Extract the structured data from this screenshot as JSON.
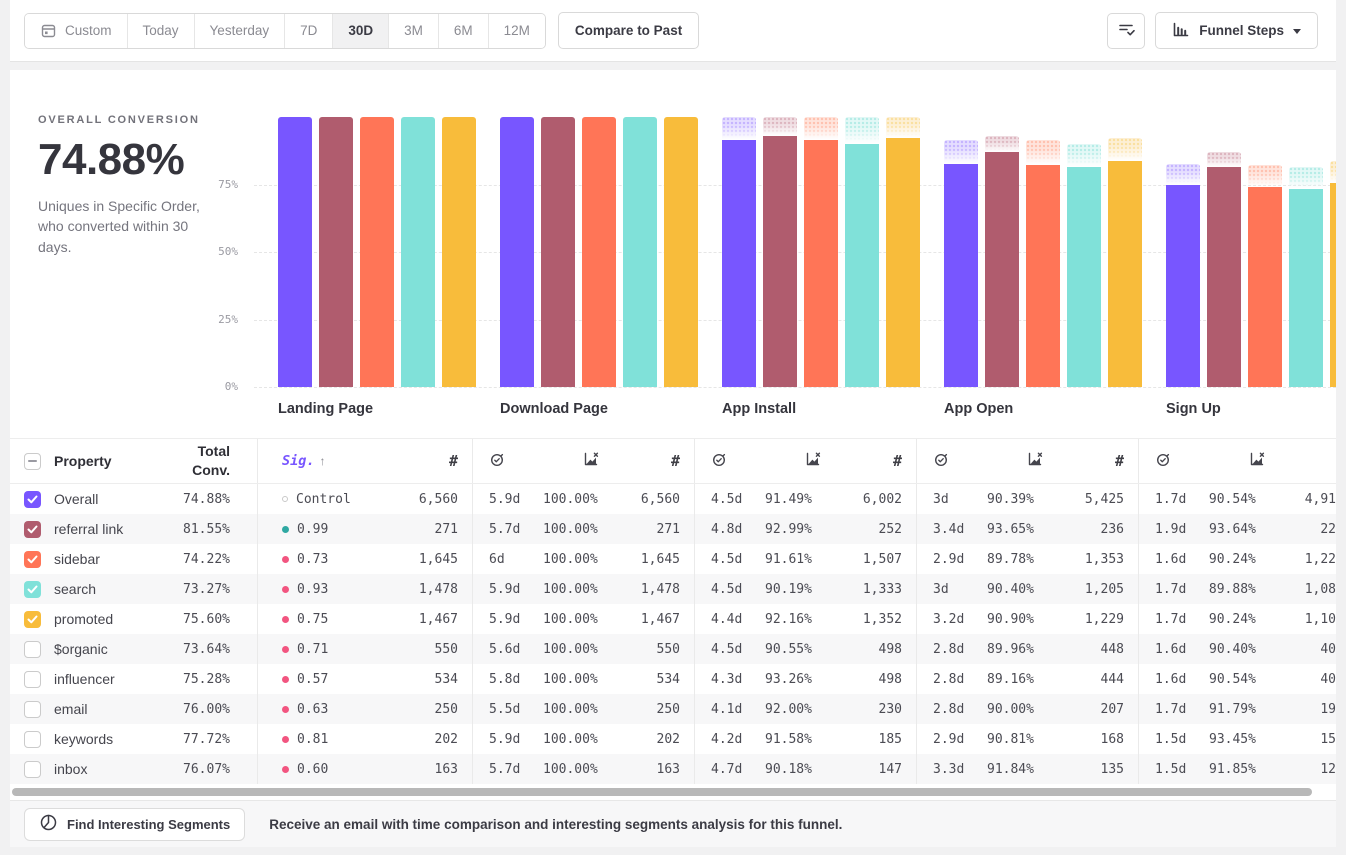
{
  "toolbar": {
    "date_ranges": [
      {
        "label": "Custom",
        "icon": "calendar-icon",
        "selected": false
      },
      {
        "label": "Today",
        "selected": false
      },
      {
        "label": "Yesterday",
        "selected": false
      },
      {
        "label": "7D",
        "selected": false
      },
      {
        "label": "30D",
        "selected": true
      },
      {
        "label": "3M",
        "selected": false
      },
      {
        "label": "6M",
        "selected": false
      },
      {
        "label": "12M",
        "selected": false
      }
    ],
    "compare_button": "Compare to Past",
    "filter_button_icon": "list-check-icon",
    "view_dropdown": {
      "icon": "bar-chart-icon",
      "label": "Funnel Steps"
    }
  },
  "summary": {
    "label": "OVERALL CONVERSION",
    "value": "74.88%",
    "description": "Uniques in Specific Order, who converted within 30 days."
  },
  "chart_data": {
    "type": "bar",
    "title": "",
    "categories": [
      "Landing Page",
      "Download Page",
      "App Install",
      "App Open",
      "Sign Up"
    ],
    "series": [
      {
        "name": "Overall",
        "color": "#7856FF",
        "tint": "#E5DEFF",
        "dot": "#C4B3FF",
        "values": [
          100,
          100,
          91.49,
          82.7,
          74.88
        ]
      },
      {
        "name": "referral link",
        "color": "#B05C6E",
        "tint": "#EFDDE2",
        "dot": "#DCB4BE",
        "values": [
          100,
          100,
          92.99,
          87.08,
          81.55
        ]
      },
      {
        "name": "sidebar",
        "color": "#FF7557",
        "tint": "#FFE4DC",
        "dot": "#FFC0AE",
        "values": [
          100,
          100,
          91.61,
          82.25,
          74.22
        ]
      },
      {
        "name": "search",
        "color": "#80E1D9",
        "tint": "#E3F8F6",
        "dot": "#B4ECE6",
        "values": [
          100,
          100,
          90.19,
          81.53,
          73.27
        ]
      },
      {
        "name": "promoted",
        "color": "#F8BC3B",
        "tint": "#FDEFD5",
        "dot": "#FADF9E",
        "values": [
          100,
          100,
          92.16,
          83.77,
          75.6
        ]
      }
    ],
    "overlay": "hatched light segment above each bar marks the previous step's level",
    "y_ticks": [
      {
        "label": "0%",
        "value": 0
      },
      {
        "label": "25%",
        "value": 25
      },
      {
        "label": "50%",
        "value": 50
      },
      {
        "label": "75%",
        "value": 75
      }
    ],
    "ylim": [
      0,
      100
    ],
    "grid": "dashed-horizontal"
  },
  "table": {
    "select_all_state": "indeterminate",
    "columns": {
      "property": "Property",
      "total_conv_lines": [
        "Total",
        "Conv."
      ],
      "sig": "Sig.",
      "sort_arrow": "↑",
      "count_icon": "hash-icon",
      "time_icon": "stopwatch-check-icon",
      "rate_icon": "conversion-rate-icon"
    },
    "step_groups": [
      "Landing Page",
      "Download Page",
      "App Install",
      "App Open",
      "Sign Up"
    ],
    "rows": [
      {
        "property": "Overall",
        "checked": true,
        "color": "#7856FF",
        "total_conv": "74.88%",
        "sig": "Control",
        "sig_dot": "control",
        "landing_count": "6,560",
        "steps": [
          {
            "time": "5.9d",
            "rate": "100.00%",
            "count": "6,560"
          },
          {
            "time": "4.5d",
            "rate": "91.49%",
            "count": "6,002"
          },
          {
            "time": "3d",
            "rate": "90.39%",
            "count": "5,425"
          },
          {
            "time": "1.7d",
            "rate": "90.54%",
            "count": "4,91"
          }
        ]
      },
      {
        "property": "referral link",
        "checked": true,
        "color": "#B05C6E",
        "total_conv": "81.55%",
        "sig": "0.99",
        "sig_dot": "teal",
        "landing_count": "271",
        "steps": [
          {
            "time": "5.7d",
            "rate": "100.00%",
            "count": "271"
          },
          {
            "time": "4.8d",
            "rate": "92.99%",
            "count": "252"
          },
          {
            "time": "3.4d",
            "rate": "93.65%",
            "count": "236"
          },
          {
            "time": "1.9d",
            "rate": "93.64%",
            "count": "22"
          }
        ]
      },
      {
        "property": "sidebar",
        "checked": true,
        "color": "#FF7557",
        "total_conv": "74.22%",
        "sig": "0.73",
        "sig_dot": "pink",
        "landing_count": "1,645",
        "steps": [
          {
            "time": "6d",
            "rate": "100.00%",
            "count": "1,645"
          },
          {
            "time": "4.5d",
            "rate": "91.61%",
            "count": "1,507"
          },
          {
            "time": "2.9d",
            "rate": "89.78%",
            "count": "1,353"
          },
          {
            "time": "1.6d",
            "rate": "90.24%",
            "count": "1,22"
          }
        ]
      },
      {
        "property": "search",
        "checked": true,
        "color": "#80E1D9",
        "total_conv": "73.27%",
        "sig": "0.93",
        "sig_dot": "pink",
        "landing_count": "1,478",
        "steps": [
          {
            "time": "5.9d",
            "rate": "100.00%",
            "count": "1,478"
          },
          {
            "time": "4.5d",
            "rate": "90.19%",
            "count": "1,333"
          },
          {
            "time": "3d",
            "rate": "90.40%",
            "count": "1,205"
          },
          {
            "time": "1.7d",
            "rate": "89.88%",
            "count": "1,08"
          }
        ]
      },
      {
        "property": "promoted",
        "checked": true,
        "color": "#F8BC3B",
        "total_conv": "75.60%",
        "sig": "0.75",
        "sig_dot": "pink",
        "landing_count": "1,467",
        "steps": [
          {
            "time": "5.9d",
            "rate": "100.00%",
            "count": "1,467"
          },
          {
            "time": "4.4d",
            "rate": "92.16%",
            "count": "1,352"
          },
          {
            "time": "3.2d",
            "rate": "90.90%",
            "count": "1,229"
          },
          {
            "time": "1.7d",
            "rate": "90.24%",
            "count": "1,10"
          }
        ]
      },
      {
        "property": "$organic",
        "checked": false,
        "color": "",
        "total_conv": "73.64%",
        "sig": "0.71",
        "sig_dot": "pink",
        "landing_count": "550",
        "steps": [
          {
            "time": "5.6d",
            "rate": "100.00%",
            "count": "550"
          },
          {
            "time": "4.5d",
            "rate": "90.55%",
            "count": "498"
          },
          {
            "time": "2.8d",
            "rate": "89.96%",
            "count": "448"
          },
          {
            "time": "1.6d",
            "rate": "90.40%",
            "count": "40"
          }
        ]
      },
      {
        "property": "influencer",
        "checked": false,
        "color": "",
        "total_conv": "75.28%",
        "sig": "0.57",
        "sig_dot": "pink",
        "landing_count": "534",
        "steps": [
          {
            "time": "5.8d",
            "rate": "100.00%",
            "count": "534"
          },
          {
            "time": "4.3d",
            "rate": "93.26%",
            "count": "498"
          },
          {
            "time": "2.8d",
            "rate": "89.16%",
            "count": "444"
          },
          {
            "time": "1.6d",
            "rate": "90.54%",
            "count": "40"
          }
        ]
      },
      {
        "property": "email",
        "checked": false,
        "color": "",
        "total_conv": "76.00%",
        "sig": "0.63",
        "sig_dot": "pink",
        "landing_count": "250",
        "steps": [
          {
            "time": "5.5d",
            "rate": "100.00%",
            "count": "250"
          },
          {
            "time": "4.1d",
            "rate": "92.00%",
            "count": "230"
          },
          {
            "time": "2.8d",
            "rate": "90.00%",
            "count": "207"
          },
          {
            "time": "1.7d",
            "rate": "91.79%",
            "count": "19"
          }
        ]
      },
      {
        "property": "keywords",
        "checked": false,
        "color": "",
        "total_conv": "77.72%",
        "sig": "0.81",
        "sig_dot": "pink",
        "landing_count": "202",
        "steps": [
          {
            "time": "5.9d",
            "rate": "100.00%",
            "count": "202"
          },
          {
            "time": "4.2d",
            "rate": "91.58%",
            "count": "185"
          },
          {
            "time": "2.9d",
            "rate": "90.81%",
            "count": "168"
          },
          {
            "time": "1.5d",
            "rate": "93.45%",
            "count": "15"
          }
        ]
      },
      {
        "property": "inbox",
        "checked": false,
        "color": "",
        "total_conv": "76.07%",
        "sig": "0.60",
        "sig_dot": "pink",
        "landing_count": "163",
        "steps": [
          {
            "time": "5.7d",
            "rate": "100.00%",
            "count": "163"
          },
          {
            "time": "4.7d",
            "rate": "90.18%",
            "count": "147"
          },
          {
            "time": "3.3d",
            "rate": "91.84%",
            "count": "135"
          },
          {
            "time": "1.5d",
            "rate": "91.85%",
            "count": "12"
          }
        ]
      }
    ]
  },
  "scrollbar": {
    "orientation": "horizontal"
  },
  "footer": {
    "button": "Find Interesting Segments",
    "icon": "segments-circle-icon",
    "message": "Receive an email with time comparison and interesting segments analysis for this funnel."
  },
  "colors": {
    "accent_purple": "#7856FF",
    "sig_dot_teal": "#2FA8A2",
    "sig_dot_pink": "#F25580",
    "row_alt_bg": "#f7f7f8"
  }
}
